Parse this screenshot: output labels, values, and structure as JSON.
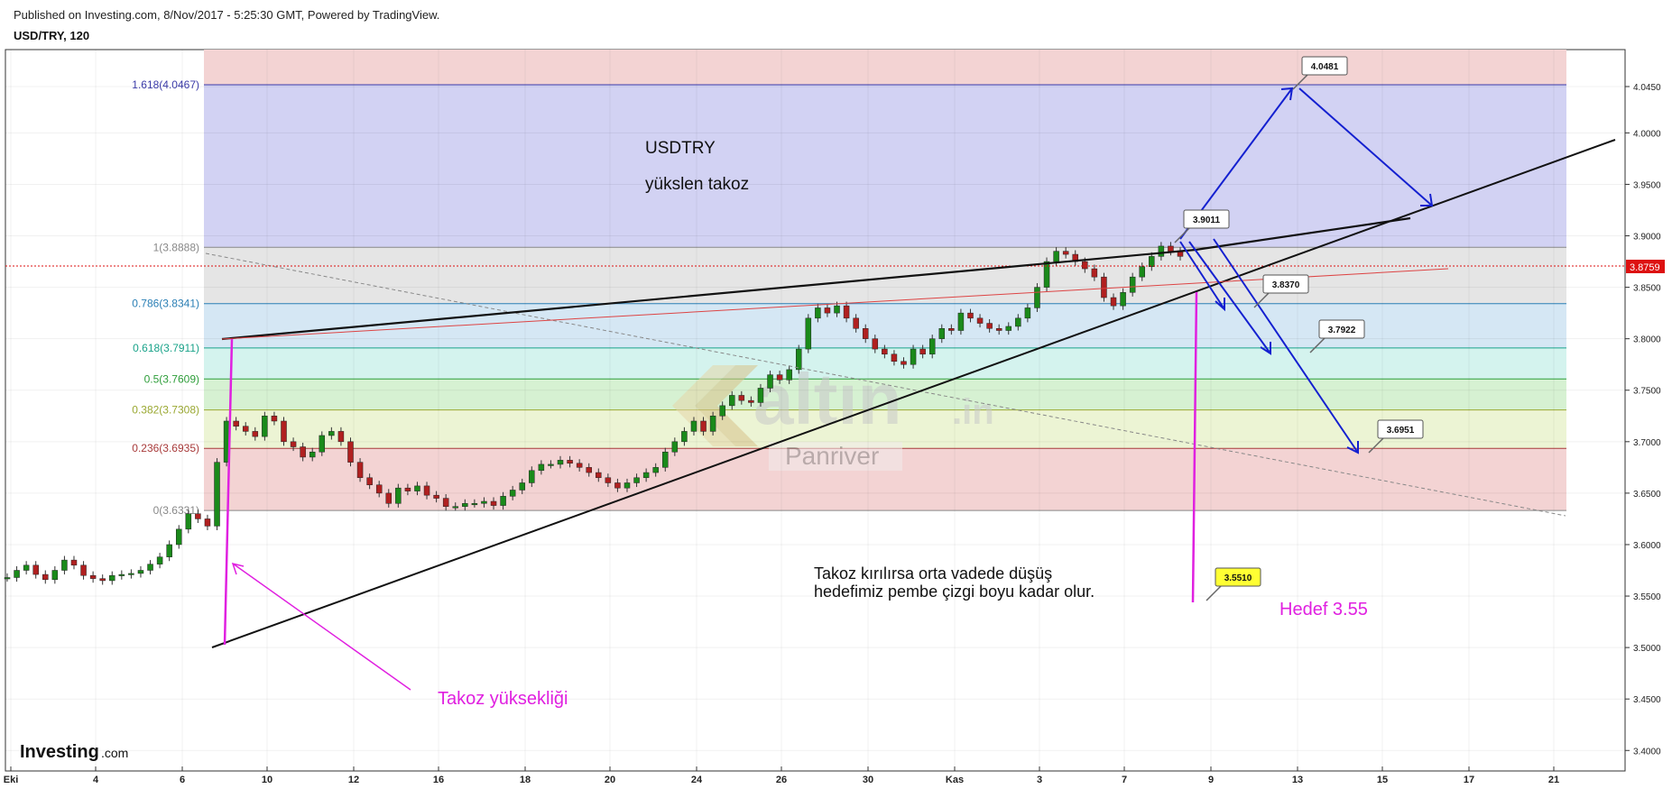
{
  "header": {
    "published": "Published on Investing.com, 8/Nov/2017 - 5:25:30 GMT, Powered by TradingView.",
    "symbol": "USD/TRY, 120"
  },
  "chart_data": {
    "type": "candlestick",
    "title": "USDTRY",
    "subtitle": "yükslen takoz",
    "ylim": [
      3.385,
      4.085
    ],
    "y_ticks": [
      "4.0450",
      "4.0000",
      "3.9500",
      "3.9000",
      "3.8500",
      "3.8000",
      "3.7500",
      "3.7000",
      "3.6500",
      "3.6000",
      "3.5500",
      "3.5000",
      "3.4500",
      "3.4000"
    ],
    "x_ticks": [
      "Eki",
      "4",
      "6",
      "10",
      "12",
      "16",
      "18",
      "20",
      "24",
      "26",
      "30",
      "Kas",
      "3",
      "7",
      "9",
      "13",
      "15",
      "17",
      "21"
    ],
    "current_price": "3.8759",
    "fib_levels": [
      {
        "label": "1.618(4.0467)",
        "value": 4.0467,
        "color": "#3a3aa8"
      },
      {
        "label": "1(3.8888)",
        "value": 3.8888,
        "color": "#888888"
      },
      {
        "label": "0.786(3.8341)",
        "value": 3.8341,
        "color": "#2a7fb5"
      },
      {
        "label": "0.618(3.7911)",
        "value": 3.7911,
        "color": "#1aa38a"
      },
      {
        "label": "0.5(3.7609)",
        "value": 3.7609,
        "color": "#2e9e3a"
      },
      {
        "label": "0.382(3.7308)",
        "value": 3.7308,
        "color": "#9aa832"
      },
      {
        "label": "0.236(3.6935)",
        "value": 3.6935,
        "color": "#a83a3a"
      },
      {
        "label": "0(3.6331)",
        "value": 3.6331,
        "color": "#888888"
      }
    ],
    "price_tags": [
      {
        "label": "4.0481",
        "value": 4.0481,
        "style": "white"
      },
      {
        "label": "3.9011",
        "value": 3.9011,
        "style": "white"
      },
      {
        "label": "3.8370",
        "value": 3.837,
        "style": "white"
      },
      {
        "label": "3.7922",
        "value": 3.7922,
        "style": "white"
      },
      {
        "label": "3.6951",
        "value": 3.6951,
        "style": "white"
      },
      {
        "label": "3.5510",
        "value": 3.551,
        "style": "yellow"
      }
    ],
    "annotations": {
      "note_line1": "Takoz kırılırsa orta vadede düşüş",
      "note_line2": "hedefimiz pembe çizgi boyu kadar olur.",
      "target": "Hedef 3.55",
      "wedge_height": "Takoz yüksekliği"
    },
    "watermark": {
      "brand": "altın",
      "suffix": ".in",
      "author": "Panriver"
    },
    "price_path": [
      [
        3.568,
        0
      ],
      [
        3.575,
        1
      ],
      [
        3.58,
        2
      ],
      [
        3.571,
        3
      ],
      [
        3.566,
        4
      ],
      [
        3.575,
        5
      ],
      [
        3.585,
        6
      ],
      [
        3.58,
        7
      ],
      [
        3.57,
        8
      ],
      [
        3.567,
        9
      ],
      [
        3.565,
        10
      ],
      [
        3.57,
        11
      ],
      [
        3.571,
        12
      ],
      [
        3.572,
        13
      ],
      [
        3.575,
        14
      ],
      [
        3.581,
        15
      ],
      [
        3.588,
        16
      ],
      [
        3.6,
        17
      ],
      [
        3.615,
        18
      ],
      [
        3.63,
        19
      ],
      [
        3.625,
        20
      ],
      [
        3.618,
        21
      ],
      [
        3.68,
        22
      ],
      [
        3.72,
        23
      ],
      [
        3.715,
        24
      ],
      [
        3.71,
        25
      ],
      [
        3.705,
        26
      ],
      [
        3.725,
        27
      ],
      [
        3.72,
        28
      ],
      [
        3.7,
        29
      ],
      [
        3.695,
        30
      ],
      [
        3.685,
        31
      ],
      [
        3.69,
        32
      ],
      [
        3.706,
        33
      ],
      [
        3.71,
        34
      ],
      [
        3.7,
        35
      ],
      [
        3.68,
        36
      ],
      [
        3.665,
        37
      ],
      [
        3.658,
        38
      ],
      [
        3.65,
        39
      ],
      [
        3.64,
        40
      ],
      [
        3.655,
        41
      ],
      [
        3.652,
        42
      ],
      [
        3.657,
        43
      ],
      [
        3.648,
        44
      ],
      [
        3.645,
        45
      ],
      [
        3.637,
        46
      ],
      [
        3.637,
        47
      ],
      [
        3.64,
        48
      ],
      [
        3.64,
        49
      ],
      [
        3.642,
        50
      ],
      [
        3.638,
        51
      ],
      [
        3.647,
        52
      ],
      [
        3.653,
        53
      ],
      [
        3.66,
        54
      ],
      [
        3.672,
        55
      ],
      [
        3.678,
        56
      ],
      [
        3.678,
        57
      ],
      [
        3.682,
        58
      ],
      [
        3.679,
        59
      ],
      [
        3.675,
        60
      ],
      [
        3.67,
        61
      ],
      [
        3.665,
        62
      ],
      [
        3.66,
        63
      ],
      [
        3.655,
        64
      ],
      [
        3.66,
        65
      ],
      [
        3.665,
        66
      ],
      [
        3.67,
        67
      ],
      [
        3.675,
        68
      ],
      [
        3.69,
        69
      ],
      [
        3.7,
        70
      ],
      [
        3.71,
        71
      ],
      [
        3.72,
        72
      ],
      [
        3.71,
        73
      ],
      [
        3.725,
        74
      ],
      [
        3.735,
        75
      ],
      [
        3.745,
        76
      ],
      [
        3.74,
        77
      ],
      [
        3.738,
        78
      ],
      [
        3.752,
        79
      ],
      [
        3.765,
        80
      ],
      [
        3.76,
        81
      ],
      [
        3.77,
        82
      ],
      [
        3.79,
        83
      ],
      [
        3.82,
        84
      ],
      [
        3.83,
        85
      ],
      [
        3.825,
        86
      ],
      [
        3.832,
        87
      ],
      [
        3.82,
        88
      ],
      [
        3.81,
        89
      ],
      [
        3.8,
        90
      ],
      [
        3.79,
        91
      ],
      [
        3.785,
        92
      ],
      [
        3.778,
        93
      ],
      [
        3.775,
        94
      ],
      [
        3.79,
        95
      ],
      [
        3.785,
        96
      ],
      [
        3.8,
        97
      ],
      [
        3.81,
        98
      ],
      [
        3.808,
        99
      ],
      [
        3.825,
        100
      ],
      [
        3.82,
        101
      ],
      [
        3.815,
        102
      ],
      [
        3.81,
        103
      ],
      [
        3.808,
        104
      ],
      [
        3.812,
        105
      ],
      [
        3.82,
        106
      ],
      [
        3.83,
        107
      ],
      [
        3.85,
        108
      ],
      [
        3.875,
        109
      ],
      [
        3.885,
        110
      ],
      [
        3.882,
        111
      ],
      [
        3.875,
        112
      ],
      [
        3.868,
        113
      ],
      [
        3.86,
        114
      ],
      [
        3.84,
        115
      ],
      [
        3.832,
        116
      ],
      [
        3.845,
        117
      ],
      [
        3.86,
        118
      ],
      [
        3.87,
        119
      ],
      [
        3.88,
        120
      ],
      [
        3.89,
        121
      ],
      [
        3.885,
        122
      ],
      [
        3.88,
        123
      ]
    ]
  }
}
